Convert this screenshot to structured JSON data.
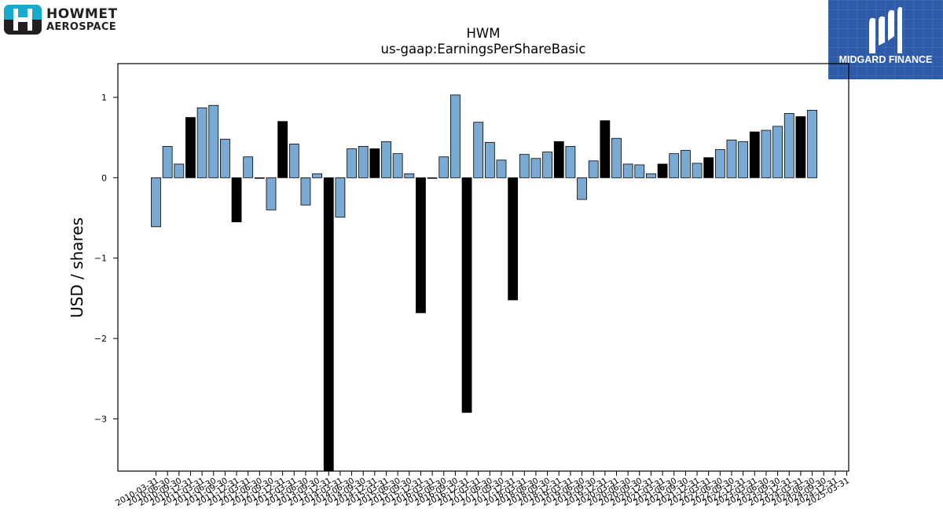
{
  "branding": {
    "left_logo_line1": "HOWMET",
    "left_logo_line2": "AEROSPACE",
    "right_logo_text": "MIDGARD FINANCE",
    "colors": {
      "howmet_cyan": "#17a9ce",
      "howmet_dark": "#231f20",
      "midgard_blue": "#2d5baa"
    }
  },
  "chart_data": {
    "type": "bar",
    "title": "HWM",
    "subtitle": "us-gaap:EarningsPerShareBasic",
    "xlabel": "",
    "ylabel": "USD / shares",
    "ylim": [
      -3.65,
      1.42
    ],
    "yticks": [
      1,
      0,
      -1,
      -2,
      -3
    ],
    "ytick_labels": [
      "1",
      "0",
      "−1",
      "−2",
      "−3"
    ],
    "grid": false,
    "legend": "none",
    "colors": {
      "quarterly": "#7aaad3",
      "annual": "#000000",
      "edge": "#000000"
    },
    "bars": [
      {
        "label": "2010-03-31",
        "value": -0.61,
        "annual": false
      },
      {
        "label": "2010-06-30",
        "value": 0.39,
        "annual": false
      },
      {
        "label": "2010-09-30",
        "value": 0.17,
        "annual": false
      },
      {
        "label": "2010-12-31",
        "value": 0.75,
        "annual": true
      },
      {
        "label": "2011-03-31",
        "value": 0.87,
        "annual": false
      },
      {
        "label": "2011-06-30",
        "value": 0.9,
        "annual": false
      },
      {
        "label": "2011-09-30",
        "value": 0.48,
        "annual": false
      },
      {
        "label": "2011-12-31",
        "value": -0.55,
        "annual": true
      },
      {
        "label": "2012-03-31",
        "value": 0.26,
        "annual": false
      },
      {
        "label": "2012-06-30",
        "value": 0.0,
        "annual": false
      },
      {
        "label": "2012-09-30",
        "value": -0.4,
        "annual": false
      },
      {
        "label": "2012-12-31",
        "value": 0.7,
        "annual": true
      },
      {
        "label": "2013-03-31",
        "value": 0.42,
        "annual": false
      },
      {
        "label": "2013-06-30",
        "value": -0.34,
        "annual": false
      },
      {
        "label": "2013-09-30",
        "value": 0.05,
        "annual": false
      },
      {
        "label": "2013-12-31",
        "value": -3.65,
        "annual": true
      },
      {
        "label": "2014-03-31",
        "value": -0.49,
        "annual": false
      },
      {
        "label": "2014-06-30",
        "value": 0.36,
        "annual": false
      },
      {
        "label": "2014-09-30",
        "value": 0.39,
        "annual": false
      },
      {
        "label": "2014-12-31",
        "value": 0.36,
        "annual": true
      },
      {
        "label": "2015-03-31",
        "value": 0.45,
        "annual": false
      },
      {
        "label": "2015-06-30",
        "value": 0.3,
        "annual": false
      },
      {
        "label": "2015-09-30",
        "value": 0.05,
        "annual": false
      },
      {
        "label": "2015-12-31",
        "value": -1.68,
        "annual": true
      },
      {
        "label": "2016-03-31",
        "value": 0.0,
        "annual": false
      },
      {
        "label": "2016-06-30",
        "value": 0.26,
        "annual": false
      },
      {
        "label": "2016-09-30",
        "value": 1.03,
        "annual": false
      },
      {
        "label": "2016-12-31",
        "value": -2.92,
        "annual": true
      },
      {
        "label": "2017-03-31",
        "value": 0.69,
        "annual": false
      },
      {
        "label": "2017-06-30",
        "value": 0.44,
        "annual": false
      },
      {
        "label": "2017-09-30",
        "value": 0.22,
        "annual": false
      },
      {
        "label": "2017-12-31",
        "value": -1.52,
        "annual": true
      },
      {
        "label": "2018-03-31",
        "value": 0.29,
        "annual": false
      },
      {
        "label": "2018-06-30",
        "value": 0.24,
        "annual": false
      },
      {
        "label": "2018-09-30",
        "value": 0.32,
        "annual": false
      },
      {
        "label": "2018-12-31",
        "value": 0.45,
        "annual": true
      },
      {
        "label": "2019-03-31",
        "value": 0.39,
        "annual": false
      },
      {
        "label": "2019-06-30",
        "value": -0.27,
        "annual": false
      },
      {
        "label": "2019-09-30",
        "value": 0.21,
        "annual": false
      },
      {
        "label": "2019-12-31",
        "value": 0.71,
        "annual": true
      },
      {
        "label": "2020-03-31",
        "value": 0.49,
        "annual": false
      },
      {
        "label": "2020-06-30",
        "value": 0.17,
        "annual": false
      },
      {
        "label": "2020-09-30",
        "value": 0.16,
        "annual": false
      },
      {
        "label": "2020-12-31",
        "value": 0.05,
        "annual": false
      },
      {
        "label": "2021-03-31",
        "value": 0.17,
        "annual": true
      },
      {
        "label": "2021-06-30",
        "value": 0.3,
        "annual": false
      },
      {
        "label": "2021-09-30",
        "value": 0.34,
        "annual": false
      },
      {
        "label": "2021-12-31",
        "value": 0.18,
        "annual": false
      },
      {
        "label": "2022-03-31",
        "value": 0.25,
        "annual": true
      },
      {
        "label": "2022-06-30",
        "value": 0.35,
        "annual": false
      },
      {
        "label": "2022-09-30",
        "value": 0.47,
        "annual": false
      },
      {
        "label": "2022-12-31",
        "value": 0.45,
        "annual": false
      },
      {
        "label": "2023-03-31",
        "value": 0.57,
        "annual": true
      },
      {
        "label": "2023-06-30",
        "value": 0.59,
        "annual": false
      },
      {
        "label": "2023-09-30",
        "value": 0.64,
        "annual": false
      },
      {
        "label": "2023-12-31",
        "value": 0.8,
        "annual": false
      },
      {
        "label": "2024-03-31",
        "value": 0.76,
        "annual": true
      },
      {
        "label": "2024-06-30",
        "value": 0.84,
        "annual": false
      }
    ],
    "tick_labels": [
      "2010-03-31",
      "2010-06-30",
      "2010-09-30",
      "2010-12-31",
      "2011-03-31",
      "2011-06-30",
      "2011-09-30",
      "2011-12-31",
      "2012-03-31",
      "2012-06-30",
      "2012-09-30",
      "2012-12-31",
      "2013-03-31",
      "2013-06-30",
      "2013-09-30",
      "2013-12-31",
      "2014-03-31",
      "2014-06-30",
      "2014-09-30",
      "2014-12-31",
      "2015-03-31",
      "2015-06-30",
      "2015-09-30",
      "2015-12-31",
      "2016-03-31",
      "2016-06-30",
      "2016-09-30",
      "2016-12-31",
      "2017-03-31",
      "2017-06-30",
      "2017-09-30",
      "2017-12-31",
      "2018-03-31",
      "2018-06-30",
      "2018-09-30",
      "2018-12-31",
      "2019-03-31",
      "2019-06-30",
      "2019-09-30",
      "2019-12-31",
      "2020-03-31",
      "2020-06-30",
      "2020-09-30",
      "2020-12-31",
      "2021-03-31",
      "2021-06-30",
      "2021-09-30",
      "2021-12-31",
      "2022-03-31",
      "2022-06-30",
      "2022-09-30",
      "2022-12-31",
      "2023-03-31",
      "2023-06-30",
      "2023-09-30",
      "2023-12-31",
      "2024-03-31",
      "2024-06-30",
      "2024-09-30",
      "2024-12-31",
      "2025-03-31"
    ]
  }
}
